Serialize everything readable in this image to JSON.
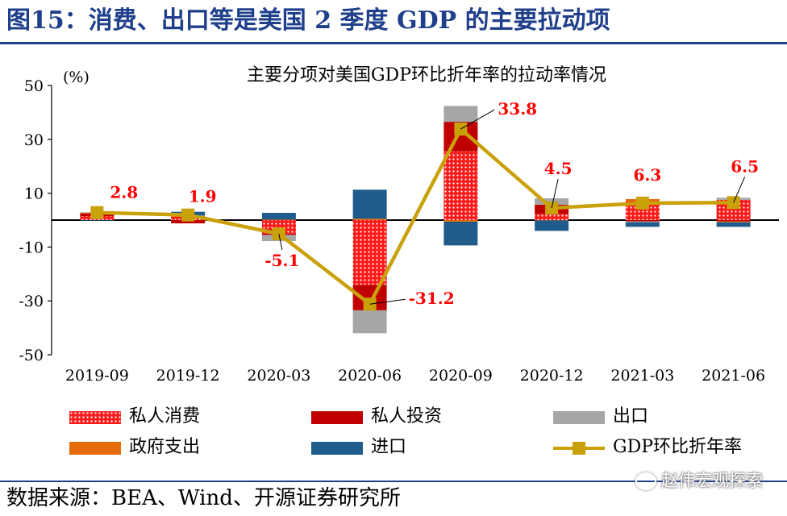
{
  "figure_title": "图15：消费、出口等是美国 2 季度 GDP 的主要拉动项",
  "source": "数据来源：BEA、Wind、开源证券研究所",
  "watermark": "赵伟宏观探索",
  "chart_data": {
    "type": "bar",
    "stacked": true,
    "title": "主要分项对美国GDP环比折年率的拉动率情况",
    "ylabel": "(%)",
    "xlabel": "",
    "ylim": [
      -50,
      50
    ],
    "yticks": [
      50,
      30,
      10,
      -10,
      -30,
      -50
    ],
    "categories": [
      "2019-09",
      "2019-12",
      "2020-03",
      "2020-06",
      "2020-09",
      "2020-12",
      "2021-03",
      "2021-06"
    ],
    "series": [
      {
        "name": "私人消费",
        "color": "#ff1a1a",
        "pattern": "dots",
        "values": [
          1.5,
          1.2,
          -5.0,
          -24.0,
          25.5,
          2.3,
          7.0,
          7.5
        ]
      },
      {
        "name": "私人投资",
        "color": "#c00000",
        "values": [
          1.0,
          -1.2,
          -0.5,
          -9.5,
          11.0,
          3.4,
          -0.5,
          -0.5
        ]
      },
      {
        "name": "政府支出",
        "color": "#e36c09",
        "values": [
          0.3,
          0.3,
          0.2,
          0.5,
          -0.6,
          -0.1,
          0.8,
          -0.3
        ]
      },
      {
        "name": "出口",
        "color": "#a6a6a6",
        "values": [
          0.1,
          0.2,
          -2.3,
          -8.5,
          5.9,
          2.4,
          -0.3,
          0.8
        ]
      },
      {
        "name": "进口",
        "color": "#1f5c8b",
        "values": [
          -0.2,
          1.4,
          2.5,
          10.8,
          -8.8,
          -3.9,
          -1.7,
          -1.7
        ]
      }
    ],
    "line": {
      "name": "GDP环比折年率",
      "color": "#c9a10a",
      "values": [
        2.8,
        1.9,
        -5.1,
        -31.2,
        33.8,
        4.5,
        6.3,
        6.5
      ]
    },
    "data_labels": [
      "2.8",
      "1.9",
      "-5.1",
      "-31.2",
      "33.8",
      "4.5",
      "6.3",
      "6.5"
    ],
    "legend": [
      "私人消费",
      "私人投资",
      "出口",
      "政府支出",
      "进口",
      "GDP环比折年率"
    ]
  }
}
